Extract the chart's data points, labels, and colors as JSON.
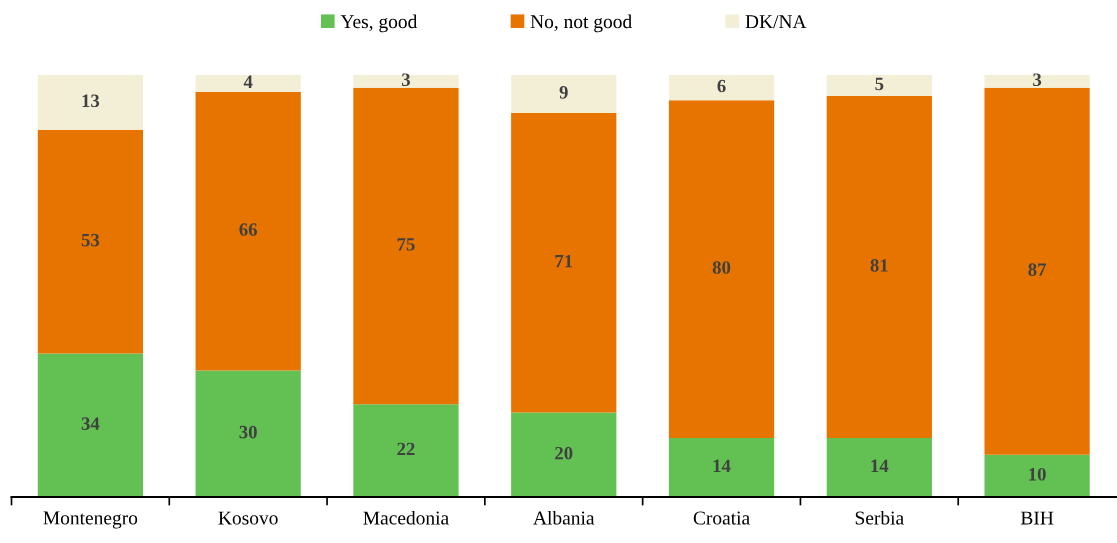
{
  "chart_data": {
    "type": "bar",
    "stacked": true,
    "categories": [
      "Montenegro",
      "Kosovo",
      "Macedonia",
      "Albania",
      "Croatia",
      "Serbia",
      "BIH"
    ],
    "series": [
      {
        "name": "Yes, good",
        "color": "#62c152",
        "values": [
          34,
          30,
          22,
          20,
          14,
          14,
          10
        ]
      },
      {
        "name": "No, not good",
        "color": "#e87400",
        "values": [
          53,
          66,
          75,
          71,
          80,
          81,
          87
        ]
      },
      {
        "name": "DK/NA",
        "color": "#f3efd6",
        "values": [
          13,
          4,
          3,
          9,
          6,
          5,
          3
        ]
      }
    ],
    "data_labels": true,
    "legend": "top",
    "grid": false,
    "tick_labels": "x"
  }
}
